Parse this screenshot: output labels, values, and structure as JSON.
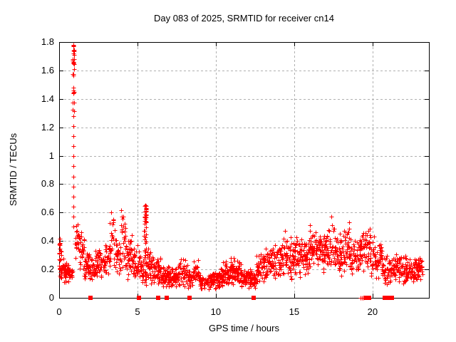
{
  "title": "Day 083 of 2025, SRMTID for receiver cn14",
  "chart_data": {
    "type": "scatter",
    "title": "Day 083 of 2025, SRMTID for receiver cn14",
    "xlabel": "GPS time / hours",
    "ylabel": "SRMTID / TECUs",
    "xlim": [
      0,
      23.6
    ],
    "ylim": [
      0,
      1.8
    ],
    "xticks": [
      0,
      5,
      10,
      15,
      20
    ],
    "yticks": [
      0,
      0.2,
      0.4,
      0.6,
      0.8,
      1.0,
      1.2,
      1.4,
      1.6,
      1.8
    ],
    "xtick_labels": [
      "0",
      "5",
      "10",
      "15",
      "20"
    ],
    "ytick_labels": [
      "0",
      "0.2",
      "0.4",
      "0.6",
      "0.8",
      "1",
      "1.2",
      "1.4",
      "1.6",
      "1.8"
    ],
    "grid": {
      "show": true,
      "style": "dashed",
      "color": "#b0b0b0",
      "at_xticks": [
        5,
        10,
        15,
        20
      ],
      "at_yticks": [
        0.2,
        0.4,
        0.6,
        0.8,
        1.0,
        1.2,
        1.4,
        1.6
      ]
    },
    "legend": null,
    "marker": "plus",
    "marker_color": "#ff0000",
    "frame_color": "#000000",
    "series_name": "SRMTID",
    "description": "Dense scatter of SRMTID values vs GPS time; large spike to 1.78 TECUs near hour 0.9, secondary spike to 0.65 near hour 5.5, background band mostly 0.1-0.45 TECUs",
    "bands": [
      [
        0.0,
        0.12,
        0.28,
        0.42
      ],
      [
        0.0,
        0.3,
        0.14,
        0.27
      ],
      [
        0.3,
        0.6,
        0.12,
        0.24
      ],
      [
        0.6,
        0.85,
        0.13,
        0.22
      ],
      [
        1.02,
        1.3,
        0.28,
        0.5
      ],
      [
        1.3,
        1.6,
        0.22,
        0.45
      ],
      [
        1.6,
        1.95,
        0.14,
        0.32
      ],
      [
        1.95,
        2.25,
        0.13,
        0.28
      ],
      [
        2.25,
        2.6,
        0.15,
        0.34
      ],
      [
        2.6,
        2.95,
        0.15,
        0.32
      ],
      [
        2.95,
        3.25,
        0.18,
        0.4
      ],
      [
        3.25,
        3.6,
        0.22,
        0.58
      ],
      [
        3.6,
        3.95,
        0.18,
        0.45
      ],
      [
        3.95,
        4.25,
        0.2,
        0.62
      ],
      [
        4.25,
        4.7,
        0.16,
        0.42
      ],
      [
        4.7,
        5.1,
        0.12,
        0.35
      ],
      [
        5.1,
        5.38,
        0.1,
        0.3
      ],
      [
        5.62,
        6.0,
        0.1,
        0.35
      ],
      [
        6.0,
        6.5,
        0.09,
        0.28
      ],
      [
        6.5,
        7.0,
        0.08,
        0.22
      ],
      [
        7.0,
        7.6,
        0.08,
        0.2
      ],
      [
        7.6,
        8.2,
        0.09,
        0.27
      ],
      [
        8.2,
        8.6,
        0.07,
        0.2
      ],
      [
        8.6,
        9.0,
        0.08,
        0.26
      ],
      [
        9.0,
        9.7,
        0.07,
        0.16
      ],
      [
        9.7,
        10.3,
        0.07,
        0.17
      ],
      [
        10.3,
        10.9,
        0.09,
        0.24
      ],
      [
        10.9,
        11.6,
        0.1,
        0.28
      ],
      [
        11.6,
        12.2,
        0.08,
        0.2
      ],
      [
        12.2,
        12.6,
        0.08,
        0.18
      ],
      [
        12.6,
        13.2,
        0.11,
        0.3
      ],
      [
        13.2,
        13.8,
        0.13,
        0.34
      ],
      [
        13.8,
        14.3,
        0.15,
        0.38
      ],
      [
        14.3,
        14.8,
        0.16,
        0.46
      ],
      [
        14.8,
        15.4,
        0.15,
        0.4
      ],
      [
        15.4,
        16.0,
        0.16,
        0.42
      ],
      [
        16.0,
        16.6,
        0.18,
        0.5
      ],
      [
        16.6,
        17.2,
        0.2,
        0.45
      ],
      [
        17.2,
        17.7,
        0.2,
        0.57
      ],
      [
        17.7,
        18.2,
        0.18,
        0.45
      ],
      [
        18.2,
        18.6,
        0.2,
        0.5
      ],
      [
        18.6,
        19.2,
        0.18,
        0.42
      ],
      [
        19.2,
        19.9,
        0.2,
        0.47
      ],
      [
        19.9,
        20.6,
        0.16,
        0.42
      ],
      [
        20.6,
        21.4,
        0.1,
        0.3
      ],
      [
        21.4,
        22.2,
        0.12,
        0.3
      ],
      [
        22.2,
        23.2,
        0.13,
        0.28
      ]
    ],
    "spikes": [
      {
        "t": 0.92,
        "t_spread": 0.04,
        "y_min": 0.5,
        "y_max": 1.78,
        "trail_to": 1.28,
        "n_trail": 12,
        "n_top": 28
      },
      {
        "t": 5.5,
        "t_spread": 0.07,
        "y_min": 0.08,
        "y_max": 0.65,
        "n": 55
      }
    ],
    "zero_squares": [
      2.0,
      5.1,
      6.3,
      6.85,
      8.3,
      12.4,
      19.55,
      19.65,
      19.78,
      20.78,
      21.02,
      21.22
    ],
    "zero_pluses": [
      19.22,
      19.32,
      19.42
    ]
  }
}
